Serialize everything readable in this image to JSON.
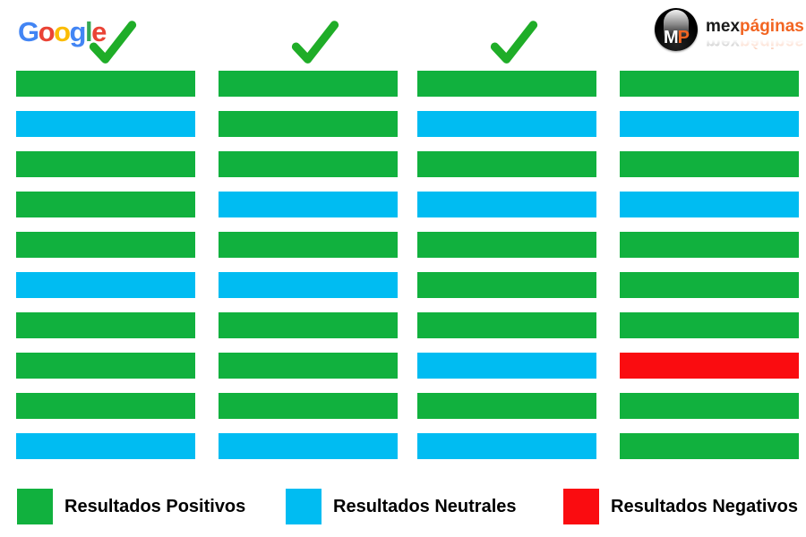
{
  "header": {
    "google": {
      "letters": [
        [
          "G",
          "#4285F4"
        ],
        [
          "o",
          "#EA4335"
        ],
        [
          "o",
          "#FBBC05"
        ],
        [
          "g",
          "#4285F4"
        ],
        [
          "l",
          "#34A853"
        ],
        [
          "e",
          "#EA4335"
        ]
      ]
    },
    "checkmark_color": "#1FAD28",
    "brand": {
      "monogram_m": "M",
      "monogram_p": "P",
      "name_black": "mex",
      "name_orange": "páginas",
      "orange": "#F26522"
    }
  },
  "chart_data": {
    "type": "heatmap",
    "title": "",
    "description_visible_text_only": "",
    "rows_per_column": 10,
    "columns_count": 4,
    "legend_position": "bottom",
    "value_colors": {
      "positive": "#11B13E",
      "neutral": "#00BCF2",
      "negative": "#FA0C10"
    },
    "columns": [
      {
        "checkmark": true,
        "results": [
          "positive",
          "neutral",
          "positive",
          "positive",
          "positive",
          "neutral",
          "positive",
          "positive",
          "positive",
          "neutral"
        ]
      },
      {
        "checkmark": true,
        "results": [
          "positive",
          "positive",
          "positive",
          "neutral",
          "positive",
          "neutral",
          "positive",
          "positive",
          "positive",
          "neutral"
        ]
      },
      {
        "checkmark": true,
        "results": [
          "positive",
          "neutral",
          "positive",
          "neutral",
          "positive",
          "positive",
          "positive",
          "neutral",
          "positive",
          "neutral"
        ]
      },
      {
        "checkmark": false,
        "results": [
          "positive",
          "neutral",
          "positive",
          "neutral",
          "positive",
          "positive",
          "positive",
          "negative",
          "positive",
          "positive"
        ]
      }
    ],
    "legend": [
      {
        "label": "Resultados Positivos",
        "value": "positive"
      },
      {
        "label": "Resultados Neutrales",
        "value": "neutral"
      },
      {
        "label": "Resultados Negativos",
        "value": "negative"
      }
    ]
  }
}
